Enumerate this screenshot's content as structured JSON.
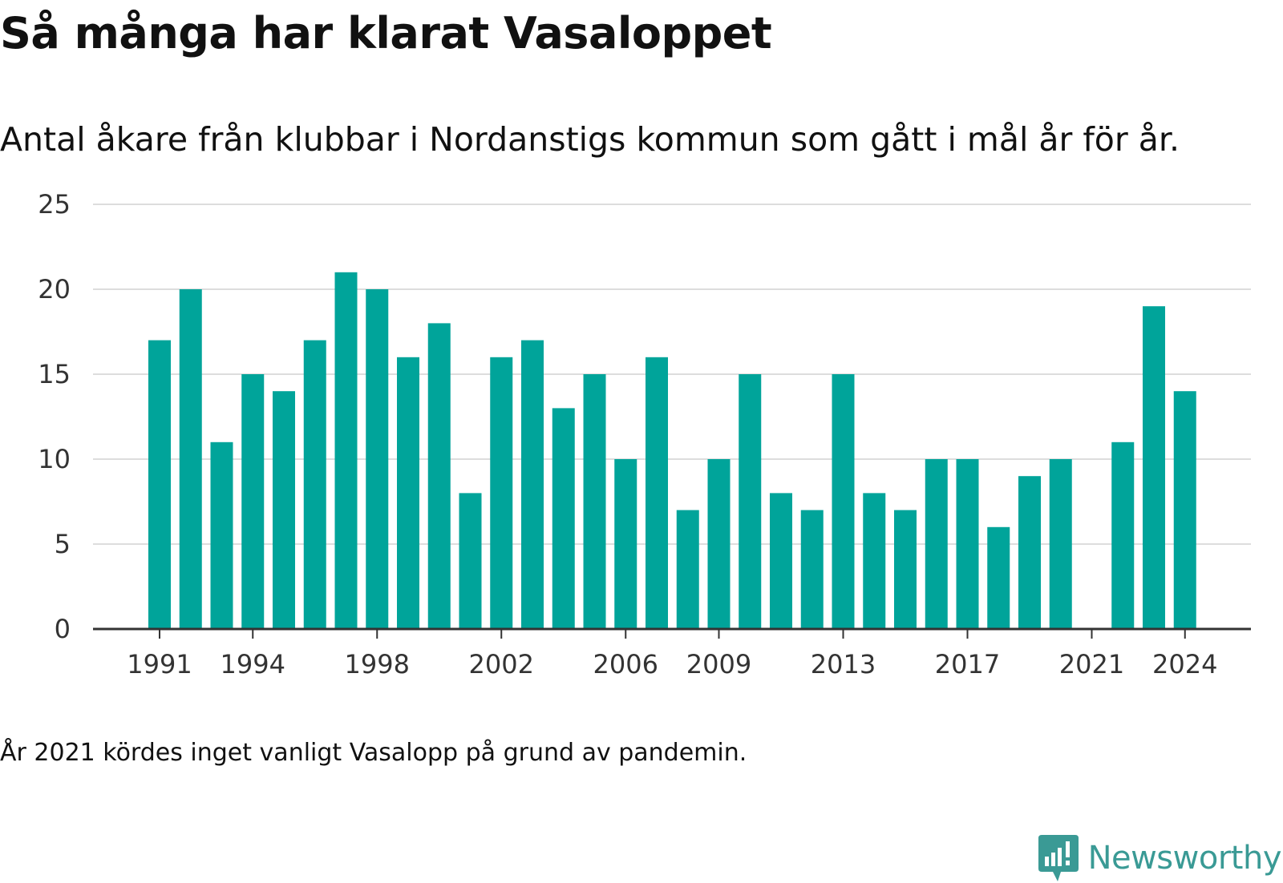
{
  "title": "Så många har klarat Vasaloppet",
  "subtitle": "Antal åkare från klubbar i Nordanstigs kommun som gått i mål år för år.",
  "footnote": "År 2021 kördes inget vanligt Vasalopp på grund av pandemin.",
  "brand": {
    "name": "Newsworthy",
    "logo_icon": "newsworthy-logo-icon"
  },
  "colors": {
    "bar": "#00a49a",
    "grid": "#dddddd",
    "axis": "#333333",
    "brand": "#3a9a95"
  },
  "chart_data": {
    "type": "bar",
    "title": "Så många har klarat Vasaloppet",
    "xlabel": "",
    "ylabel": "",
    "categories": [
      1991,
      1992,
      1993,
      1994,
      1995,
      1996,
      1997,
      1998,
      1999,
      2000,
      2001,
      2002,
      2003,
      2004,
      2005,
      2006,
      2007,
      2008,
      2009,
      2010,
      2011,
      2012,
      2013,
      2014,
      2015,
      2016,
      2017,
      2018,
      2019,
      2020,
      2021,
      2022,
      2023,
      2024
    ],
    "values": [
      17,
      20,
      11,
      15,
      14,
      17,
      21,
      20,
      16,
      18,
      8,
      16,
      17,
      13,
      15,
      10,
      16,
      7,
      10,
      15,
      8,
      7,
      15,
      8,
      7,
      10,
      10,
      6,
      9,
      10,
      null,
      11,
      19,
      14
    ],
    "x_tick_labels": [
      "1991",
      "1994",
      "1998",
      "2002",
      "2006",
      "2009",
      "2013",
      "2017",
      "2021",
      "2024"
    ],
    "y_ticks": [
      0,
      5,
      10,
      15,
      20,
      25
    ],
    "ylim": [
      0,
      25
    ],
    "grid": true,
    "legend": "none"
  }
}
